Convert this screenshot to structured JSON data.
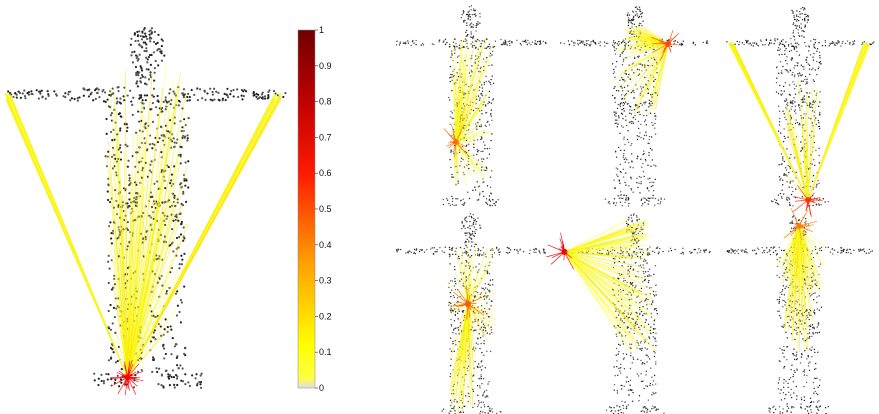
{
  "colorbar": {
    "ticks": [
      "0",
      "0.1",
      "0.2",
      "0.3",
      "0.4",
      "0.5",
      "0.6",
      "0.7",
      "0.8",
      "0.9",
      "1"
    ],
    "colormap_stops": [
      "#e8e8e8",
      "#ffff00",
      "#ffa000",
      "#ff0000",
      "#7a0000"
    ]
  },
  "panels": [
    {
      "highlight": "left-foot",
      "heat": "#ff0000"
    },
    {
      "highlight": "left-shin",
      "heat": "#ff6a00"
    },
    {
      "highlight": "right-shoulder",
      "heat": "#ff4400"
    },
    {
      "highlight": "right-foot",
      "heat": "#ff2a00"
    },
    {
      "highlight": "chest",
      "heat": "#ff5000"
    },
    {
      "highlight": "left-hand",
      "heat": "#ee0000"
    },
    {
      "highlight": "head",
      "heat": "#ff7a00"
    }
  ]
}
